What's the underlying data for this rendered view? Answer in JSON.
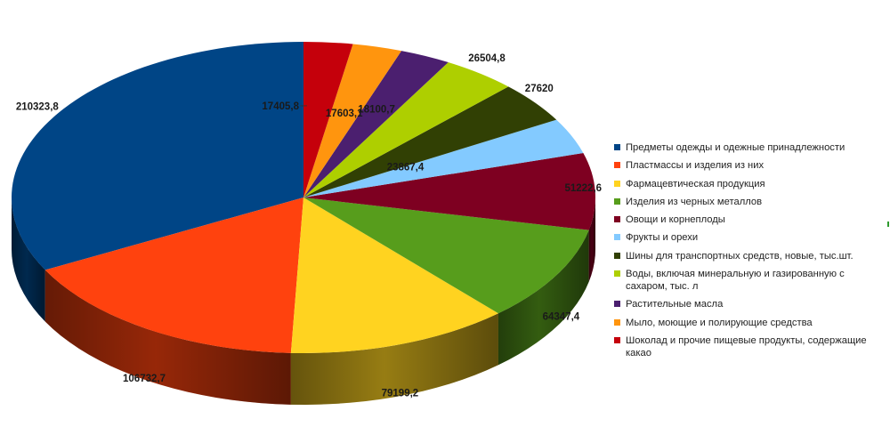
{
  "chart_data": {
    "type": "pie",
    "title": "",
    "categories": [
      "Предметы одежды и одежные принадлежности",
      "Пластмассы и изделия из них",
      "Фармацевтическая продукция",
      "Изделия из черных металлов",
      "Овощи и корнеплоды",
      "Фрукты и орехи",
      "Шины для транспортных средств, новые, тыс.шт.",
      "Воды, включая минеральную и газированную с сахаром, тыс. л",
      "Растительные масла",
      "Мыло, моющие и полирующие средства",
      "Шоколад и прочие пищевые продукты, содержащие какао"
    ],
    "values": [
      210323.8,
      106732.7,
      79199.2,
      64347.4,
      51222.6,
      23867.4,
      27620,
      26504.8,
      18100.7,
      17603.1,
      17405.8
    ],
    "value_labels": [
      "210323,8",
      "106732,7",
      "79199,2",
      "64347,4",
      "51222,6",
      "23867,4",
      "27620",
      "26504,8",
      "18100,7",
      "17603,1",
      "17405,8"
    ],
    "colors": [
      "#004586",
      "#ff420e",
      "#ffd320",
      "#579d1c",
      "#7e0021",
      "#83caff",
      "#314004",
      "#aecf00",
      "#4b1f6f",
      "#ff950e",
      "#c5000b"
    ],
    "legend_position": "right",
    "style": "3d"
  }
}
